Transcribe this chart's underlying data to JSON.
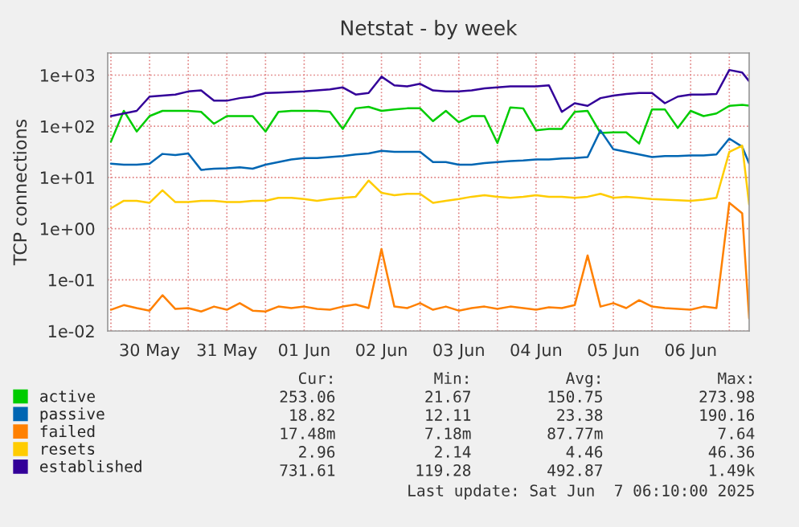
{
  "chart_data": {
    "type": "line",
    "title": "Netstat - by week",
    "ylabel": "TCP connections",
    "x": [
      "2025-05-30T00:00",
      "2025-05-30T04:00",
      "2025-05-30T08:00",
      "2025-05-30T12:00",
      "2025-05-30T16:00",
      "2025-05-30T20:00",
      "2025-05-31T00:00",
      "2025-05-31T04:00",
      "2025-05-31T08:00",
      "2025-05-31T12:00",
      "2025-05-31T16:00",
      "2025-05-31T20:00",
      "2025-06-01T00:00",
      "2025-06-01T04:00",
      "2025-06-01T08:00",
      "2025-06-01T12:00",
      "2025-06-01T16:00",
      "2025-06-01T20:00",
      "2025-06-02T00:00",
      "2025-06-02T04:00",
      "2025-06-02T08:00",
      "2025-06-02T12:00",
      "2025-06-02T16:00",
      "2025-06-02T20:00",
      "2025-06-03T00:00",
      "2025-06-03T04:00",
      "2025-06-03T08:00",
      "2025-06-03T12:00",
      "2025-06-03T16:00",
      "2025-06-03T20:00",
      "2025-06-04T00:00",
      "2025-06-04T04:00",
      "2025-06-04T08:00",
      "2025-06-04T12:00",
      "2025-06-04T16:00",
      "2025-06-04T20:00",
      "2025-06-05T00:00",
      "2025-06-05T04:00",
      "2025-06-05T08:00",
      "2025-06-05T12:00",
      "2025-06-05T16:00",
      "2025-06-05T20:00",
      "2025-06-06T00:00",
      "2025-06-06T04:00",
      "2025-06-06T08:00",
      "2025-06-06T12:00",
      "2025-06-06T16:00",
      "2025-06-06T20:00",
      "2025-06-07T00:00",
      "2025-06-07T04:00",
      "2025-06-07T06:10"
    ],
    "series": [
      {
        "name": "active",
        "color": "#00cc00",
        "values": [
          50,
          200,
          79,
          158,
          200,
          200,
          200,
          191,
          112,
          158,
          158,
          158,
          79,
          191,
          200,
          200,
          200,
          191,
          89,
          224,
          240,
          200,
          214,
          224,
          224,
          126,
          200,
          120,
          158,
          158,
          47,
          234,
          224,
          83,
          89,
          89,
          191,
          200,
          74,
          76,
          76,
          46,
          214,
          214,
          93,
          200,
          158,
          178,
          251,
          263,
          253
        ]
      },
      {
        "name": "passive",
        "color": "#0066b3",
        "values": [
          18.6,
          17.8,
          17.8,
          18.6,
          28.8,
          27.5,
          29.5,
          14.1,
          14.8,
          15.1,
          15.8,
          14.8,
          17.8,
          20,
          22.4,
          24,
          24,
          25.1,
          26.3,
          28.2,
          29.5,
          33.1,
          31.6,
          31.6,
          31.6,
          20,
          20,
          17.8,
          17.8,
          19.1,
          20,
          20.9,
          21.4,
          22.4,
          22.4,
          23.4,
          24,
          25.1,
          83,
          35.5,
          31.6,
          28.2,
          25.1,
          26.3,
          26.3,
          26.9,
          26.9,
          28.2,
          57.5,
          39.8,
          18.8
        ]
      },
      {
        "name": "failed",
        "color": "#ff8000",
        "values": [
          0.026,
          0.032,
          0.028,
          0.025,
          0.05,
          0.027,
          0.028,
          0.024,
          0.03,
          0.026,
          0.035,
          0.025,
          0.024,
          0.03,
          0.028,
          0.03,
          0.027,
          0.026,
          0.03,
          0.033,
          0.028,
          0.4,
          0.03,
          0.028,
          0.035,
          0.026,
          0.03,
          0.025,
          0.028,
          0.03,
          0.027,
          0.03,
          0.028,
          0.026,
          0.029,
          0.028,
          0.032,
          0.3,
          0.03,
          0.035,
          0.028,
          0.04,
          0.03,
          0.028,
          0.027,
          0.026,
          0.03,
          0.028,
          3.2,
          2,
          0.0175
        ]
      },
      {
        "name": "resets",
        "color": "#ffcc00",
        "values": [
          2.5,
          3.5,
          3.5,
          3.2,
          5.6,
          3.3,
          3.3,
          3.5,
          3.5,
          3.3,
          3.3,
          3.5,
          3.5,
          4,
          4,
          3.8,
          3.5,
          3.8,
          4,
          4.2,
          8.7,
          5,
          4.5,
          4.8,
          4.8,
          3.2,
          3.5,
          3.8,
          4.2,
          4.5,
          4.2,
          4,
          4.2,
          4.5,
          4.2,
          4.2,
          4,
          4.2,
          4.8,
          4,
          4.2,
          4,
          3.8,
          3.7,
          3.6,
          3.5,
          3.7,
          4,
          31.6,
          41.7,
          2.96
        ]
      },
      {
        "name": "established",
        "color": "#330099",
        "values": [
          158,
          178,
          200,
          380,
          398,
          417,
          479,
          501,
          316,
          316,
          355,
          380,
          447,
          457,
          468,
          479,
          501,
          525,
          575,
          417,
          447,
          933,
          631,
          603,
          676,
          501,
          479,
          479,
          501,
          550,
          575,
          603,
          603,
          603,
          631,
          191,
          282,
          251,
          355,
          398,
          427,
          447,
          447,
          282,
          380,
          417,
          417,
          427,
          1259,
          1122,
          759
        ]
      }
    ],
    "log": "y",
    "ylim": [
      0.01,
      2700
    ],
    "yticks": [
      {
        "value": 0.01,
        "label": "1e-02"
      },
      {
        "value": 0.1,
        "label": "1e-01"
      },
      {
        "value": 1,
        "label": "1e+00"
      },
      {
        "value": 10,
        "label": "1e+01"
      },
      {
        "value": 100,
        "label": "1e+02"
      },
      {
        "value": 1000,
        "label": "1e+03"
      }
    ],
    "xlim": [
      "2025-05-29T23:00",
      "2025-06-07T06:10"
    ],
    "xticks": [
      {
        "value": "2025-05-30T00:00",
        "label": null
      },
      {
        "value": "2025-05-30T12:00",
        "label": "30 May"
      },
      {
        "value": "2025-05-31T00:00",
        "label": null
      },
      {
        "value": "2025-05-31T12:00",
        "label": "31 May"
      },
      {
        "value": "2025-06-01T00:00",
        "label": null
      },
      {
        "value": "2025-06-01T12:00",
        "label": "01 Jun"
      },
      {
        "value": "2025-06-02T00:00",
        "label": null
      },
      {
        "value": "2025-06-02T12:00",
        "label": "02 Jun"
      },
      {
        "value": "2025-06-03T00:00",
        "label": null
      },
      {
        "value": "2025-06-03T12:00",
        "label": "03 Jun"
      },
      {
        "value": "2025-06-04T00:00",
        "label": null
      },
      {
        "value": "2025-06-04T12:00",
        "label": "04 Jun"
      },
      {
        "value": "2025-06-05T00:00",
        "label": null
      },
      {
        "value": "2025-06-05T12:00",
        "label": "05 Jun"
      },
      {
        "value": "2025-06-06T00:00",
        "label": null
      },
      {
        "value": "2025-06-06T12:00",
        "label": "06 Jun"
      },
      {
        "value": "2025-06-07T00:00",
        "label": null
      }
    ],
    "grid": true,
    "legend": "bottom",
    "marker": "none",
    "line_style": "solid",
    "annotations": [
      "Cur:",
      "Min:",
      "Avg:",
      "Max:",
      "253.06",
      "21.67",
      "150.75",
      "273.98",
      "18.82",
      "12.11",
      "23.38",
      "190.16",
      "17.48m",
      "7.18m",
      "87.77m",
      "7.64",
      "2.96",
      "2.14",
      "4.46",
      "46.36",
      "731.61",
      "119.28",
      "492.87",
      "1.49k",
      "Last update: Sat Jun  7 06:10:00 2025"
    ]
  }
}
